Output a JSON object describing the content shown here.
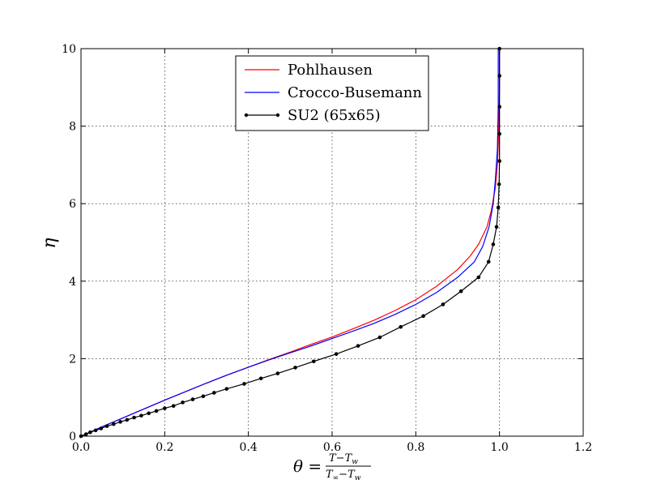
{
  "chart_data": {
    "type": "line",
    "xlabel": "θ = (T−Tw)/(T∞−Tw)",
    "xlabel_main": "θ =",
    "xlabel_num": "T−T",
    "xlabel_num_sub": "w",
    "xlabel_den": "T",
    "xlabel_den_sub1": "∞",
    "xlabel_den_mid": "−T",
    "xlabel_den_sub2": "w",
    "ylabel": "η",
    "xlim": [
      0,
      1.2
    ],
    "ylim": [
      0,
      10
    ],
    "xticks": [
      0.0,
      0.2,
      0.4,
      0.6,
      0.8,
      1.0,
      1.2
    ],
    "xtick_labels": [
      "0.0",
      "0.2",
      "0.4",
      "0.6",
      "0.8",
      "1.0",
      "1.2"
    ],
    "yticks": [
      0,
      2,
      4,
      6,
      8,
      10
    ],
    "ytick_labels": [
      "0",
      "2",
      "4",
      "6",
      "8",
      "10"
    ],
    "grid": true,
    "legend_position": "top-center",
    "series": [
      {
        "name": "Pohlhausen",
        "color": "#ff0000",
        "marker": "none",
        "x": [
          0,
          0.05,
          0.1,
          0.15,
          0.2,
          0.25,
          0.3,
          0.35,
          0.4,
          0.45,
          0.5,
          0.55,
          0.6,
          0.65,
          0.7,
          0.75,
          0.8,
          0.85,
          0.9,
          0.93,
          0.95,
          0.97,
          0.98,
          0.99,
          0.995,
          0.998,
          1.0,
          1.0
        ],
        "y": [
          0,
          0.24,
          0.47,
          0.7,
          0.93,
          1.15,
          1.37,
          1.58,
          1.78,
          1.98,
          2.17,
          2.37,
          2.56,
          2.77,
          2.99,
          3.24,
          3.52,
          3.87,
          4.3,
          4.65,
          4.95,
          5.4,
          5.8,
          6.4,
          7.0,
          7.8,
          9.0,
          10.0
        ]
      },
      {
        "name": "Crocco-Busemann",
        "color": "#0000ff",
        "marker": "none",
        "x": [
          0,
          0.05,
          0.1,
          0.15,
          0.2,
          0.25,
          0.3,
          0.35,
          0.4,
          0.45,
          0.5,
          0.55,
          0.6,
          0.65,
          0.7,
          0.75,
          0.8,
          0.85,
          0.9,
          0.94,
          0.96,
          0.975,
          0.985,
          0.99,
          0.995,
          0.997,
          0.997
        ],
        "y": [
          0,
          0.24,
          0.47,
          0.7,
          0.93,
          1.15,
          1.37,
          1.58,
          1.78,
          1.97,
          2.15,
          2.33,
          2.52,
          2.71,
          2.91,
          3.14,
          3.4,
          3.71,
          4.1,
          4.5,
          4.9,
          5.4,
          6.0,
          6.6,
          7.4,
          8.5,
          10.0
        ]
      },
      {
        "name": "SU2 (65x65)",
        "color": "#000000",
        "marker": "dot",
        "x": [
          0,
          0.012,
          0.022,
          0.035,
          0.048,
          0.062,
          0.078,
          0.094,
          0.11,
          0.127,
          0.144,
          0.162,
          0.18,
          0.2,
          0.221,
          0.243,
          0.267,
          0.292,
          0.318,
          0.348,
          0.39,
          0.43,
          0.47,
          0.512,
          0.556,
          0.61,
          0.662,
          0.714,
          0.764,
          0.818,
          0.865,
          0.908,
          0.95,
          0.974,
          0.985,
          0.993,
          0.997,
          0.999,
          1.0,
          1.0,
          1.0,
          1.0,
          1.0
        ],
        "y": [
          0,
          0.05,
          0.1,
          0.15,
          0.2,
          0.26,
          0.31,
          0.37,
          0.42,
          0.48,
          0.53,
          0.59,
          0.65,
          0.72,
          0.78,
          0.87,
          0.95,
          1.03,
          1.12,
          1.22,
          1.35,
          1.49,
          1.62,
          1.77,
          1.93,
          2.12,
          2.33,
          2.55,
          2.82,
          3.1,
          3.4,
          3.74,
          4.1,
          4.5,
          4.95,
          5.4,
          5.9,
          6.5,
          7.1,
          7.8,
          8.5,
          9.3,
          10.0
        ]
      }
    ]
  }
}
